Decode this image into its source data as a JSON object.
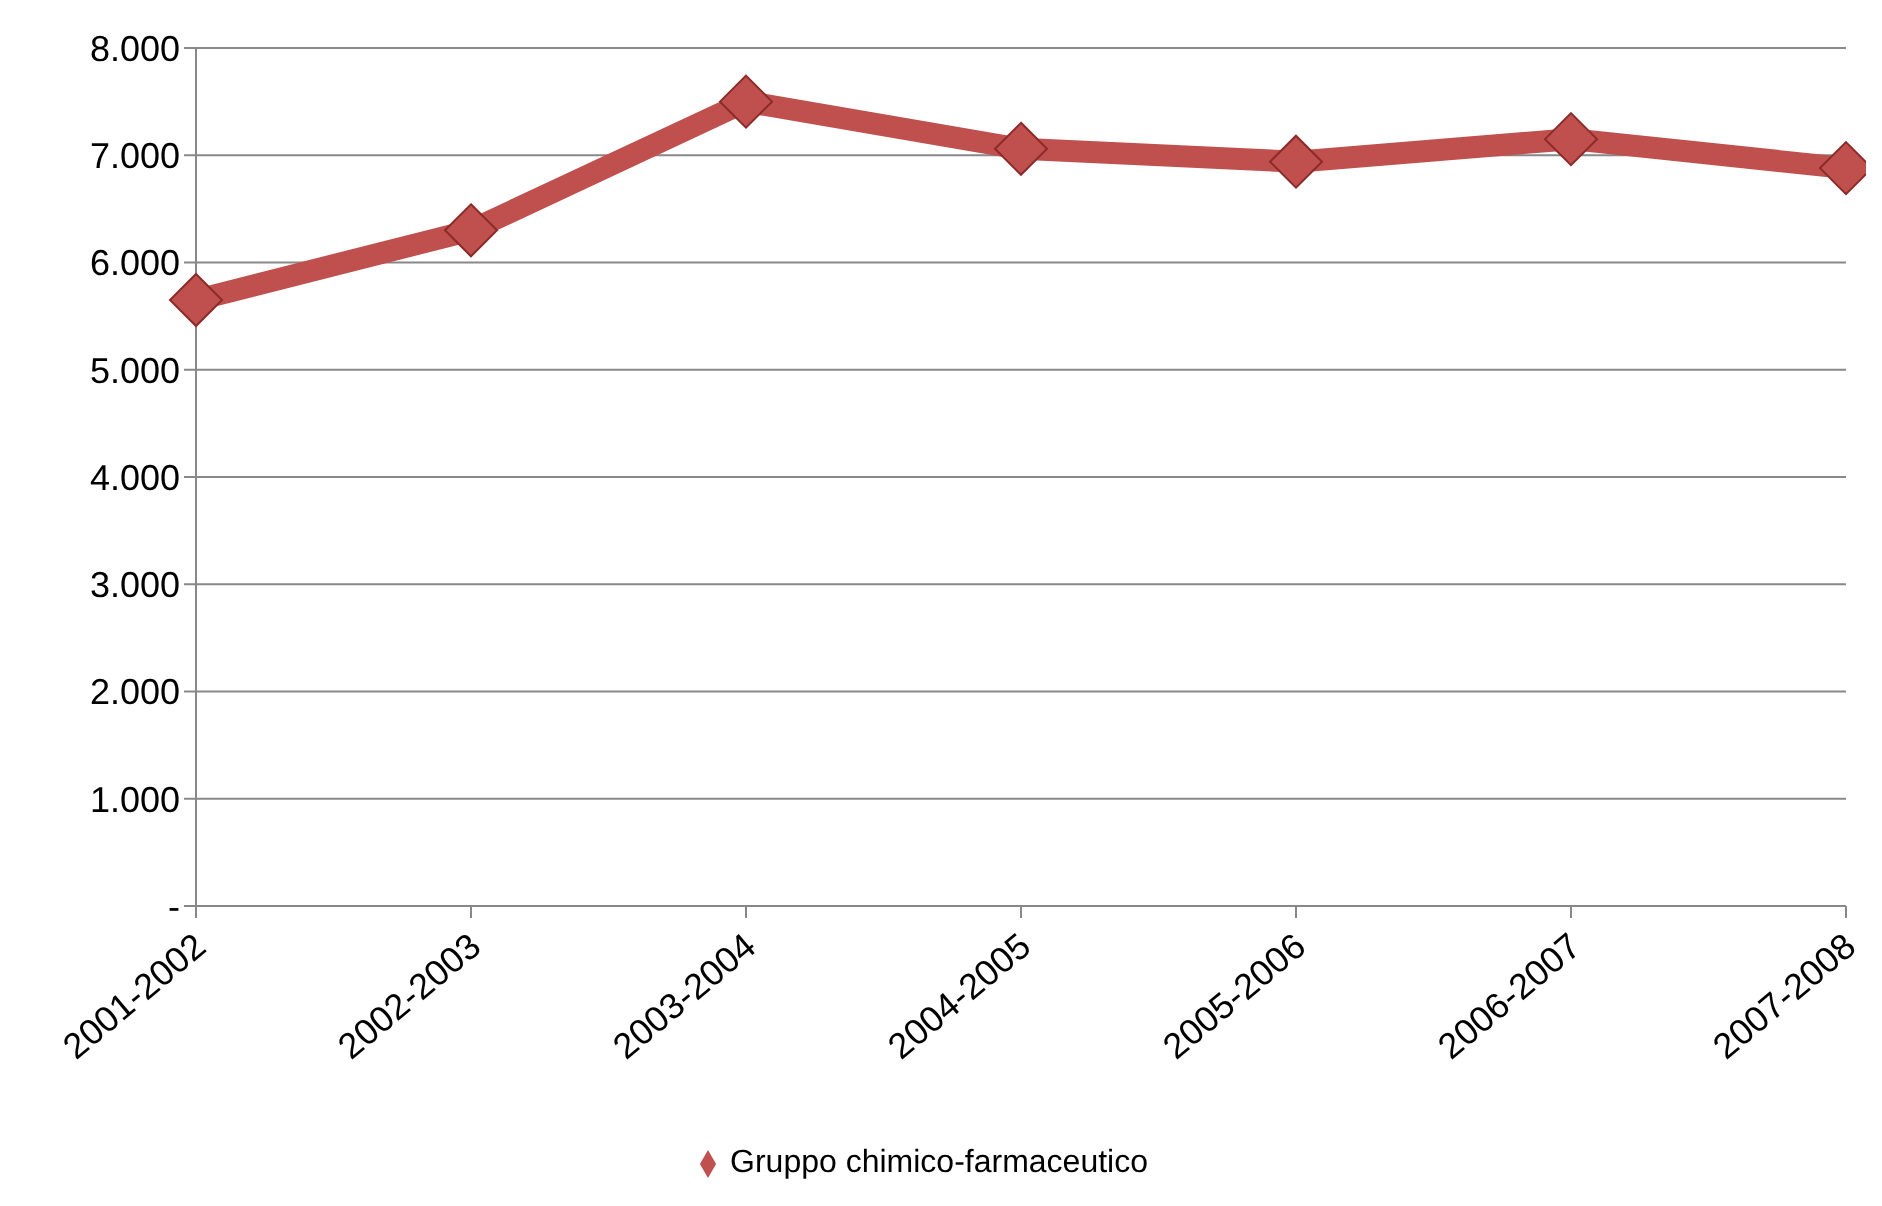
{
  "chart_data": {
    "type": "line",
    "categories": [
      "2001-2002",
      "2002-2003",
      "2003-2004",
      "2004-2005",
      "2005-2006",
      "2006-2007",
      "2007-2008"
    ],
    "series": [
      {
        "name": "Gruppo chimico-farmaceutico",
        "color": "#c0504d",
        "values": [
          5650,
          6300,
          7500,
          7060,
          6940,
          7150,
          6880
        ]
      }
    ],
    "ylim": [
      0,
      8000
    ],
    "yticks": [
      {
        "value": 0,
        "label": "-"
      },
      {
        "value": 1000,
        "label": "1.000"
      },
      {
        "value": 2000,
        "label": "2.000"
      },
      {
        "value": 3000,
        "label": "3.000"
      },
      {
        "value": 4000,
        "label": "4.000"
      },
      {
        "value": 5000,
        "label": "5.000"
      },
      {
        "value": 6000,
        "label": "6.000"
      },
      {
        "value": 7000,
        "label": "7.000"
      },
      {
        "value": 8000,
        "label": "8.000"
      }
    ],
    "grid": "y",
    "legend": "bottom",
    "marker": "diamond",
    "line_style": "solid"
  }
}
